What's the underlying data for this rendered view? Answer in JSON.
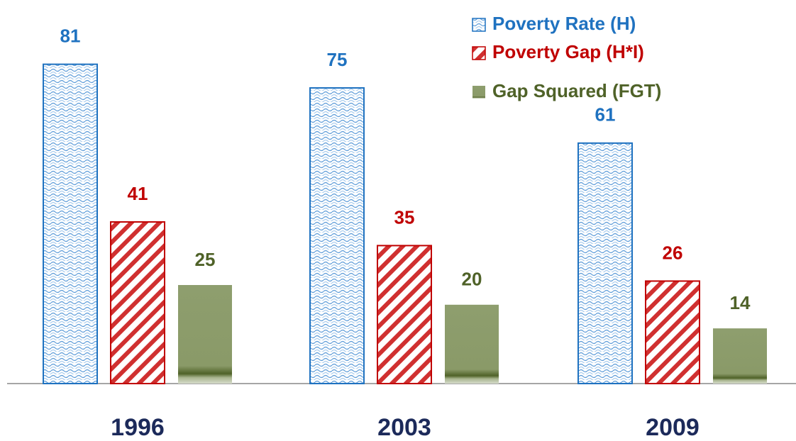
{
  "chart_data": {
    "type": "bar",
    "categories": [
      "1996",
      "2003",
      "2009"
    ],
    "series": [
      {
        "name": "Poverty Rate (H)",
        "color": "#1f72c0",
        "values": [
          81,
          75,
          61
        ]
      },
      {
        "name": "Poverty Gap (H*I)",
        "color": "#c00000",
        "values": [
          41,
          35,
          26
        ]
      },
      {
        "name": "Gap Squared (FGT)",
        "color": "#4f6228",
        "values": [
          25,
          20,
          14
        ]
      }
    ]
  }
}
